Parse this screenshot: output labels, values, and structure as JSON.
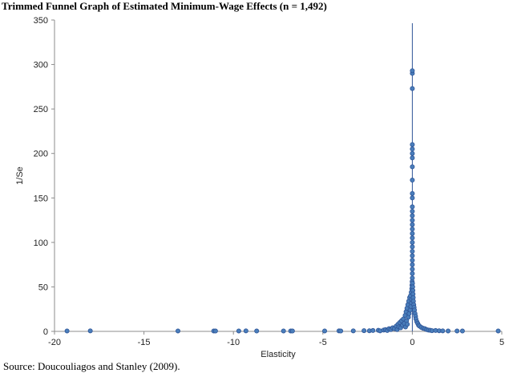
{
  "chart_data": {
    "type": "scatter",
    "title": "Trimmed Funnel Graph of Estimated Minimum-Wage Effects (n = 1,492)",
    "xlabel": "Elasticity",
    "ylabel": "1/Se",
    "xlim": [
      -20,
      5
    ],
    "ylim": [
      0,
      350
    ],
    "xticks": [
      -20,
      -15,
      -10,
      -5,
      0,
      5
    ],
    "yticks": [
      0,
      50,
      100,
      150,
      200,
      250,
      300,
      350
    ],
    "reference_line_x": 0,
    "grid": false,
    "marker_color": "#4a7ebb",
    "marker_edge_color": "#2f5597",
    "points": [
      [
        -19.3,
        0.5
      ],
      [
        -18.0,
        0.6
      ],
      [
        -13.1,
        0.5
      ],
      [
        -11.1,
        0.5
      ],
      [
        -11.0,
        0.4
      ],
      [
        -9.7,
        0.5
      ],
      [
        -9.3,
        0.6
      ],
      [
        -8.7,
        0.4
      ],
      [
        -7.2,
        0.5
      ],
      [
        -6.8,
        0.5
      ],
      [
        -6.7,
        0.4
      ],
      [
        -4.9,
        0.5
      ],
      [
        -4.1,
        0.6
      ],
      [
        -4.0,
        0.4
      ],
      [
        -3.3,
        0.6
      ],
      [
        -2.7,
        0.8
      ],
      [
        -2.4,
        0.7
      ],
      [
        -2.2,
        1.0
      ],
      [
        -1.9,
        1.2
      ],
      [
        -1.8,
        0.6
      ],
      [
        -1.6,
        1.5
      ],
      [
        -1.5,
        2.0
      ],
      [
        -1.4,
        1.0
      ],
      [
        -1.3,
        3.0
      ],
      [
        -1.2,
        2.0
      ],
      [
        -1.1,
        4.0
      ],
      [
        -1.0,
        3.0
      ],
      [
        -0.9,
        6.0
      ],
      [
        -0.85,
        2.0
      ],
      [
        -0.8,
        8.0
      ],
      [
        -0.75,
        5.0
      ],
      [
        -0.7,
        10.0
      ],
      [
        -0.65,
        4.0
      ],
      [
        -0.6,
        12.0
      ],
      [
        -0.55,
        7.0
      ],
      [
        -0.5,
        14.0
      ],
      [
        -0.45,
        9.0
      ],
      [
        -0.4,
        18.0
      ],
      [
        -0.38,
        5.0
      ],
      [
        -0.35,
        22.0
      ],
      [
        -0.32,
        12.0
      ],
      [
        -0.3,
        26.0
      ],
      [
        -0.28,
        8.0
      ],
      [
        -0.25,
        30.0
      ],
      [
        -0.22,
        16.0
      ],
      [
        -0.2,
        34.0
      ],
      [
        -0.18,
        20.0
      ],
      [
        -0.15,
        38.0
      ],
      [
        -0.12,
        24.0
      ],
      [
        -0.1,
        40.0
      ],
      [
        -0.08,
        28.0
      ],
      [
        -0.06,
        44.0
      ],
      [
        -0.05,
        32.0
      ],
      [
        -0.04,
        36.0
      ],
      [
        -0.03,
        48.0
      ],
      [
        -0.02,
        52.0
      ],
      [
        -0.01,
        56.0
      ],
      [
        0.0,
        60.0
      ],
      [
        0.0,
        65.0
      ],
      [
        0.0,
        70.0
      ],
      [
        0.0,
        75.0
      ],
      [
        0.0,
        80.0
      ],
      [
        0.0,
        85.0
      ],
      [
        0.0,
        90.0
      ],
      [
        0.0,
        95.0
      ],
      [
        0.0,
        100.0
      ],
      [
        0.0,
        105.0
      ],
      [
        0.0,
        110.0
      ],
      [
        0.0,
        115.0
      ],
      [
        0.0,
        120.0
      ],
      [
        0.0,
        125.0
      ],
      [
        0.0,
        130.0
      ],
      [
        0.0,
        135.0
      ],
      [
        0.0,
        140.0
      ],
      [
        0.0,
        150.0
      ],
      [
        0.0,
        155.0
      ],
      [
        0.0,
        170.0
      ],
      [
        0.0,
        185.0
      ],
      [
        0.0,
        195.0
      ],
      [
        0.0,
        200.0
      ],
      [
        0.0,
        205.0
      ],
      [
        0.0,
        210.0
      ],
      [
        0.0,
        273.0
      ],
      [
        0.0,
        290.0
      ],
      [
        0.0,
        293.0
      ],
      [
        0.01,
        54.0
      ],
      [
        0.02,
        50.0
      ],
      [
        0.03,
        46.0
      ],
      [
        0.04,
        42.0
      ],
      [
        0.05,
        38.0
      ],
      [
        0.06,
        34.0
      ],
      [
        0.08,
        30.0
      ],
      [
        0.1,
        27.0
      ],
      [
        0.12,
        24.0
      ],
      [
        0.15,
        20.0
      ],
      [
        0.18,
        17.0
      ],
      [
        0.2,
        14.0
      ],
      [
        0.25,
        11.0
      ],
      [
        0.3,
        9.0
      ],
      [
        0.35,
        7.0
      ],
      [
        0.4,
        6.0
      ],
      [
        0.5,
        4.5
      ],
      [
        0.6,
        3.5
      ],
      [
        0.7,
        3.0
      ],
      [
        0.8,
        2.0
      ],
      [
        0.9,
        1.5
      ],
      [
        1.0,
        1.2
      ],
      [
        1.1,
        0.8
      ],
      [
        1.3,
        1.0
      ],
      [
        1.5,
        0.7
      ],
      [
        1.7,
        0.6
      ],
      [
        2.0,
        0.5
      ],
      [
        2.5,
        0.5
      ],
      [
        2.8,
        0.4
      ],
      [
        4.8,
        0.5
      ]
    ]
  },
  "footer": {
    "source": "Source: Doucouliagos and Stanley (2009)."
  }
}
